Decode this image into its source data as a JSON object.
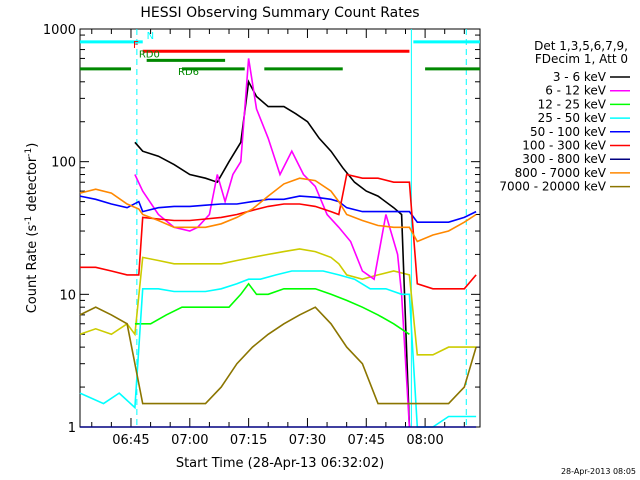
{
  "chart_data": {
    "type": "line",
    "title": "HESSI Observing Summary Count Rates",
    "xlabel": "Start Time (28-Apr-13 06:32:02)",
    "ylabel_main": "Count Rate (s",
    "ylabel_sup1": "-1",
    "ylabel_mid": " detector",
    "ylabel_sup2": "-1",
    "ylabel_end": ")",
    "yscale": "log",
    "ylim": [
      1,
      1000
    ],
    "xlim_min": [
      0,
      102
    ],
    "x_unit": "minutes since 06:32",
    "yticks": [
      {
        "v": 1,
        "label": "1"
      },
      {
        "v": 10,
        "label": "10"
      },
      {
        "v": 100,
        "label": "100"
      },
      {
        "v": 1000,
        "label": "1000"
      }
    ],
    "xticks": [
      {
        "m": 13,
        "label": "06:45"
      },
      {
        "m": 28,
        "label": "07:00"
      },
      {
        "m": 43,
        "label": "07:15"
      },
      {
        "m": 58,
        "label": "07:30"
      },
      {
        "m": 73,
        "label": "07:45"
      },
      {
        "m": 88,
        "label": "08:00"
      }
    ],
    "legend_header": [
      "Det 1,3,5,6,7,9,",
      "FDecim 1, Att 0"
    ],
    "footer_date": "28-Apr-2013 08:05",
    "flags": [
      {
        "label": "N",
        "color": "#00ffff",
        "y": 800,
        "segments": [
          [
            0,
            16
          ],
          [
            85,
            102
          ]
        ]
      },
      {
        "label": "F",
        "color": "#ff0000",
        "y": 680,
        "segments": [
          [
            16,
            84
          ]
        ]
      },
      {
        "label": "RD0",
        "color": "#008800",
        "y": 580,
        "segments": [
          [
            17,
            37
          ]
        ]
      },
      {
        "label": "RD6",
        "color": "#008800",
        "y": 500,
        "segments": [
          [
            0,
            13
          ],
          [
            26,
            42
          ],
          [
            47,
            67
          ],
          [
            88,
            102
          ]
        ]
      }
    ],
    "vlines": [
      {
        "m": 14.5,
        "color": "#00ffff",
        "style": "dash"
      },
      {
        "m": 84.5,
        "color": "#00ffff",
        "style": "solid"
      },
      {
        "m": 98.5,
        "color": "#00ffff",
        "style": "dash"
      }
    ],
    "series": [
      {
        "name": "3 - 6 keV",
        "color": "#000000",
        "x": [
          14,
          16,
          20,
          24,
          28,
          32,
          35,
          38,
          41,
          43,
          45,
          48,
          52,
          55,
          58,
          61,
          64,
          67,
          70,
          73,
          76,
          80,
          82,
          84
        ],
        "y": [
          140,
          120,
          110,
          95,
          80,
          75,
          70,
          100,
          140,
          400,
          310,
          260,
          260,
          230,
          200,
          150,
          120,
          90,
          70,
          60,
          55,
          45,
          40,
          1
        ]
      },
      {
        "name": "6 - 12 keV",
        "color": "#ff00ff",
        "x": [
          14,
          16,
          20,
          24,
          28,
          30,
          33,
          35,
          37,
          39,
          41,
          43,
          45,
          48,
          51,
          54,
          57,
          60,
          63,
          66,
          69,
          72,
          75,
          78,
          81,
          82,
          84
        ],
        "y": [
          80,
          60,
          40,
          32,
          30,
          32,
          40,
          80,
          50,
          80,
          100,
          600,
          250,
          150,
          80,
          120,
          80,
          65,
          40,
          32,
          25,
          15,
          13,
          40,
          20,
          10,
          1
        ]
      },
      {
        "name": "12 - 25 keV",
        "color": "#00ff00",
        "x": [
          14,
          18,
          22,
          26,
          30,
          34,
          38,
          41,
          43,
          45,
          48,
          52,
          56,
          60,
          64,
          68,
          72,
          76,
          80,
          84
        ],
        "y": [
          6,
          6,
          7,
          8,
          8,
          8,
          8,
          10,
          12,
          10,
          10,
          11,
          11,
          11,
          10,
          9,
          8,
          7,
          6,
          5
        ]
      },
      {
        "name": "25 - 50 keV",
        "color": "#00ffff",
        "x": [
          0,
          6,
          10,
          14,
          16,
          20,
          24,
          28,
          32,
          36,
          40,
          43,
          46,
          50,
          54,
          58,
          62,
          66,
          70,
          74,
          78,
          82,
          84,
          86,
          90,
          94,
          98,
          101
        ],
        "y": [
          1.8,
          1.5,
          1.8,
          1.4,
          11,
          11,
          10.5,
          10.5,
          10.5,
          11,
          12,
          13,
          13,
          14,
          15,
          15,
          15,
          14,
          13,
          11,
          11,
          10,
          10,
          1,
          1,
          1.2,
          1.2,
          1.2
        ]
      },
      {
        "name": "50 - 100 keV",
        "color": "#0000ff",
        "x": [
          0,
          4,
          8,
          12,
          15,
          16,
          20,
          24,
          28,
          32,
          36,
          40,
          44,
          48,
          52,
          56,
          60,
          64,
          66,
          68,
          72,
          76,
          80,
          84,
          86,
          90,
          94,
          98,
          101
        ],
        "y": [
          55,
          52,
          48,
          45,
          50,
          42,
          45,
          46,
          46,
          47,
          48,
          48,
          50,
          52,
          52,
          55,
          54,
          52,
          50,
          45,
          42,
          42,
          42,
          42,
          35,
          35,
          35,
          38,
          42
        ]
      },
      {
        "name": "100 - 300 keV",
        "color": "#ff0000",
        "x": [
          0,
          4,
          8,
          12,
          15,
          16,
          20,
          24,
          28,
          32,
          36,
          40,
          44,
          48,
          52,
          56,
          60,
          64,
          66,
          68,
          72,
          76,
          80,
          84,
          86,
          90,
          94,
          98,
          101
        ],
        "y": [
          16,
          16,
          15,
          14,
          14,
          38,
          37,
          36,
          36,
          37,
          38,
          40,
          43,
          46,
          48,
          48,
          46,
          42,
          40,
          80,
          75,
          75,
          70,
          70,
          12,
          11,
          11,
          11,
          14
        ]
      },
      {
        "name": "300 - 800 keV",
        "color": "#000080",
        "x": [
          0,
          6,
          10,
          14,
          16,
          20,
          24,
          28,
          32,
          36,
          40,
          44,
          48,
          52,
          56,
          60,
          64,
          68,
          72,
          76,
          80,
          84,
          86,
          90,
          94,
          98,
          101
        ],
        "y": [
          1,
          1,
          1,
          1,
          1,
          1,
          1,
          1,
          1,
          1,
          1,
          1,
          1,
          1,
          1,
          1,
          1,
          1,
          1,
          1,
          1,
          1,
          1,
          1,
          1,
          1,
          1
        ]
      },
      {
        "name": "800 - 7000 keV",
        "color": "#ff8800",
        "x": [
          0,
          4,
          8,
          12,
          15,
          16,
          20,
          24,
          28,
          32,
          36,
          40,
          44,
          48,
          52,
          56,
          60,
          64,
          66,
          68,
          72,
          76,
          80,
          84,
          86,
          90,
          94,
          98,
          101
        ],
        "y": [
          58,
          62,
          58,
          48,
          44,
          40,
          36,
          32,
          32,
          32,
          34,
          38,
          44,
          55,
          68,
          75,
          72,
          60,
          50,
          40,
          36,
          33,
          32,
          32,
          25,
          28,
          30,
          35,
          40
        ]
      },
      {
        "name": "7000 - 20000 keV",
        "color": "#8b7500",
        "x": [
          0,
          4,
          8,
          12,
          16,
          20,
          24,
          28,
          32,
          36,
          40,
          44,
          48,
          52,
          56,
          60,
          64,
          68,
          72,
          76,
          80,
          84,
          86,
          90,
          94,
          98,
          101
        ],
        "y": [
          7,
          8,
          7,
          6,
          1.5,
          1.5,
          1.5,
          1.5,
          1.5,
          2,
          3,
          4,
          5,
          6,
          7,
          8,
          6,
          4,
          3,
          1.5,
          1.5,
          1.5,
          1.5,
          1.5,
          1.5,
          2,
          4
        ]
      }
    ],
    "extra_yellow": {
      "name": "",
      "color": "#cccc00",
      "x": [
        0,
        4,
        8,
        12,
        14,
        16,
        20,
        24,
        28,
        32,
        36,
        40,
        44,
        48,
        52,
        56,
        60,
        64,
        66,
        68,
        72,
        76,
        80,
        84,
        86,
        90,
        94,
        98,
        101
      ],
      "y": [
        5,
        5.5,
        5,
        6,
        5,
        19,
        18,
        17,
        17,
        17,
        17,
        18,
        19,
        20,
        21,
        22,
        21,
        19,
        17,
        14,
        13,
        14,
        15,
        14,
        3.5,
        3.5,
        4,
        4,
        4
      ]
    },
    "grid": false,
    "legend": "right"
  }
}
